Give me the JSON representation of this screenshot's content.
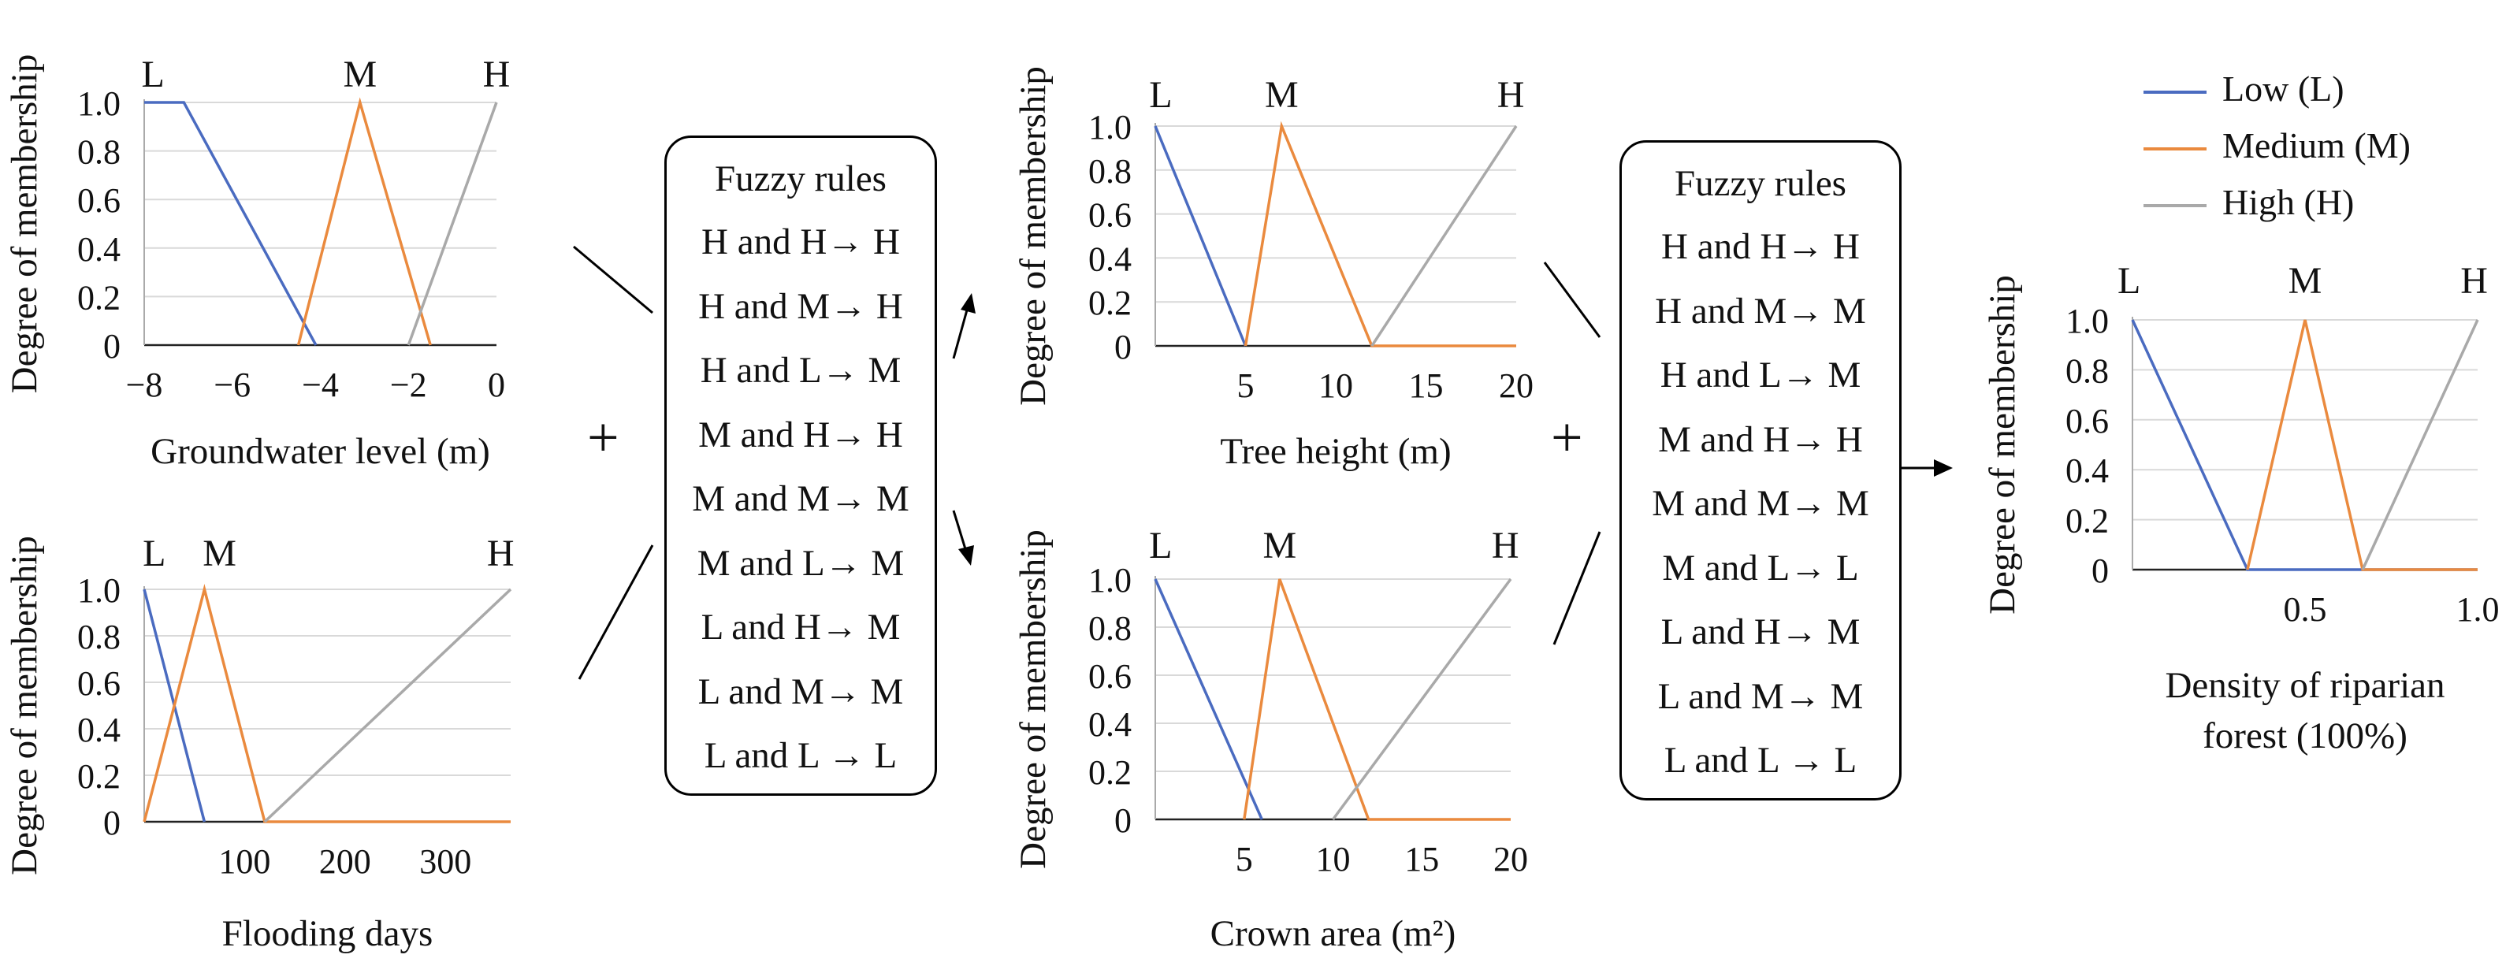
{
  "colors": {
    "low": "#4a6bc0",
    "medium": "#ea8a3e",
    "high": "#a9a9a9"
  },
  "legend": [
    {
      "key": "low",
      "label": "Low (L)"
    },
    {
      "key": "medium",
      "label": "Medium (M)"
    },
    {
      "key": "high",
      "label": "High (H)"
    }
  ],
  "rules_left": {
    "title": "Fuzzy rules",
    "rules": [
      "H and H→ H",
      "H and M→ H",
      "H and L→ M",
      "M and H→ H",
      "M and M→ M",
      "M and L→ M",
      "L and H→ M",
      "L and M→ M",
      "L and L → L"
    ]
  },
  "rules_right": {
    "title": "Fuzzy rules",
    "rules": [
      "H and H→ H",
      "H and M→ M",
      "H and L→ M",
      "M and H→ H",
      "M and M→ M",
      "M and L→ L",
      "L and H→ M",
      "L and M→ M",
      "L and L → L"
    ]
  },
  "plus_sign": "+",
  "chart_data": [
    {
      "id": "groundwater",
      "type": "line",
      "xlabel": "Groundwater level (m)",
      "ylabel": "Degree of membership",
      "xlim": [
        -8,
        0
      ],
      "ylim": [
        0,
        1
      ],
      "xticks": [
        -8,
        -6,
        -4,
        -2,
        0
      ],
      "xtick_labels": [
        "−8",
        "−6",
        "−4",
        "−2",
        "0"
      ],
      "yticks": [
        0,
        0.2,
        0.4,
        0.6,
        0.8,
        1.0
      ],
      "ytick_labels": [
        "0",
        "0.2",
        "0.4",
        "0.6",
        "0.8",
        "1.0"
      ],
      "set_labels": [
        {
          "text": "L",
          "x": -7.8
        },
        {
          "text": "M",
          "x": -3.1
        },
        {
          "text": "H",
          "x": 0
        }
      ],
      "series": [
        {
          "key": "low",
          "x": [
            -8,
            -7.1,
            -4.1
          ],
          "y": [
            1,
            1,
            0
          ]
        },
        {
          "key": "medium",
          "x": [
            -4.5,
            -3.1,
            -1.5
          ],
          "y": [
            0,
            1,
            0
          ]
        },
        {
          "key": "high",
          "x": [
            -2.0,
            0
          ],
          "y": [
            0,
            1
          ]
        }
      ]
    },
    {
      "id": "flooding",
      "type": "line",
      "xlabel": "Flooding days",
      "ylabel": "Degree of membership",
      "xlim": [
        0,
        365
      ],
      "ylim": [
        0,
        1
      ],
      "xticks": [
        100,
        200,
        300
      ],
      "xtick_labels": [
        "100",
        "200",
        "300"
      ],
      "yticks": [
        0,
        0.2,
        0.4,
        0.6,
        0.8,
        1.0
      ],
      "ytick_labels": [
        "0",
        "0.2",
        "0.4",
        "0.6",
        "0.8",
        "1.0"
      ],
      "set_labels": [
        {
          "text": "L",
          "x": 10
        },
        {
          "text": "M",
          "x": 75
        },
        {
          "text": "H",
          "x": 355
        }
      ],
      "series": [
        {
          "key": "low",
          "x": [
            0,
            60
          ],
          "y": [
            1,
            0
          ]
        },
        {
          "key": "medium",
          "x": [
            0,
            60,
            120,
            365
          ],
          "y": [
            0,
            1,
            0,
            0
          ]
        },
        {
          "key": "high",
          "x": [
            120,
            365
          ],
          "y": [
            0,
            1
          ]
        }
      ]
    },
    {
      "id": "tree_height",
      "type": "line",
      "xlabel": "Tree height (m)",
      "ylabel": "Degree of membership",
      "xlim": [
        0,
        20
      ],
      "ylim": [
        0,
        1
      ],
      "xticks": [
        5,
        10,
        15,
        20
      ],
      "xtick_labels": [
        "5",
        "10",
        "15",
        "20"
      ],
      "yticks": [
        0,
        0.2,
        0.4,
        0.6,
        0.8,
        1.0
      ],
      "ytick_labels": [
        "0",
        "0.2",
        "0.4",
        "0.6",
        "0.8",
        "1.0"
      ],
      "set_labels": [
        {
          "text": "L",
          "x": 0.3
        },
        {
          "text": "M",
          "x": 7
        },
        {
          "text": "H",
          "x": 19.7
        }
      ],
      "series": [
        {
          "key": "low",
          "x": [
            0,
            5
          ],
          "y": [
            1,
            0
          ]
        },
        {
          "key": "medium",
          "x": [
            5,
            7,
            12,
            20
          ],
          "y": [
            0,
            1,
            0,
            0
          ]
        },
        {
          "key": "high",
          "x": [
            12,
            20
          ],
          "y": [
            0,
            1
          ]
        }
      ]
    },
    {
      "id": "crown_area",
      "type": "line",
      "xlabel": "Crown area (m²)",
      "ylabel": "Degree of membership",
      "xlim": [
        0,
        20
      ],
      "ylim": [
        0,
        1
      ],
      "xticks": [
        5,
        10,
        15,
        20
      ],
      "xtick_labels": [
        "5",
        "10",
        "15",
        "20"
      ],
      "yticks": [
        0,
        0.2,
        0.4,
        0.6,
        0.8,
        1.0
      ],
      "ytick_labels": [
        "0",
        "0.2",
        "0.4",
        "0.6",
        "0.8",
        "1.0"
      ],
      "set_labels": [
        {
          "text": "L",
          "x": 0.3
        },
        {
          "text": "M",
          "x": 7
        },
        {
          "text": "H",
          "x": 19.7
        }
      ],
      "series": [
        {
          "key": "low",
          "x": [
            0,
            6
          ],
          "y": [
            1,
            0
          ]
        },
        {
          "key": "medium",
          "x": [
            5,
            7,
            12,
            20
          ],
          "y": [
            0,
            1,
            0,
            0
          ]
        },
        {
          "key": "high",
          "x": [
            10,
            20
          ],
          "y": [
            0,
            1
          ]
        }
      ]
    },
    {
      "id": "density",
      "type": "line",
      "xlabel": "Density of riparian",
      "xlabel2": "forest (100%)",
      "ylabel": "Degree of membership",
      "xlim": [
        0,
        1
      ],
      "ylim": [
        0,
        1
      ],
      "xticks": [
        0.5,
        1.0
      ],
      "xtick_labels": [
        "0.5",
        "1.0"
      ],
      "yticks": [
        0,
        0.2,
        0.4,
        0.6,
        0.8,
        1.0
      ],
      "ytick_labels": [
        "0",
        "0.2",
        "0.4",
        "0.6",
        "0.8",
        "1.0"
      ],
      "set_labels": [
        {
          "text": "L",
          "x": -0.01
        },
        {
          "text": "M",
          "x": 0.5
        },
        {
          "text": "H",
          "x": 0.99
        }
      ],
      "series": [
        {
          "key": "low",
          "x": [
            0,
            0.333,
            1
          ],
          "y": [
            1,
            0,
            0
          ]
        },
        {
          "key": "medium",
          "x": [
            0.333,
            0.5,
            0.667,
            1
          ],
          "y": [
            0,
            1,
            0,
            0
          ]
        },
        {
          "key": "high",
          "x": [
            0.667,
            1
          ],
          "y": [
            0,
            1
          ]
        }
      ]
    }
  ]
}
